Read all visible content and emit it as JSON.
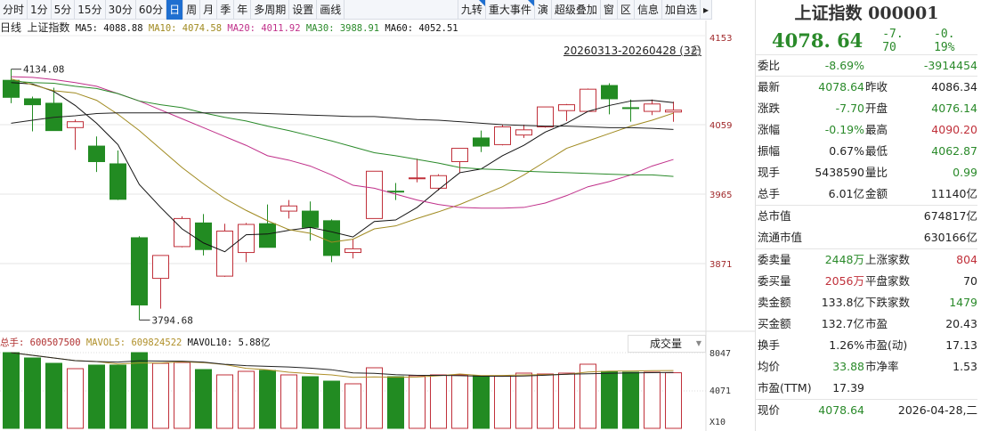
{
  "toolbar": {
    "periods": [
      "分时",
      "1分",
      "5分",
      "15分",
      "30分",
      "60分",
      "日",
      "周",
      "月",
      "季",
      "年",
      "多周期",
      "设置",
      "画线"
    ],
    "selected": "日",
    "tools": [
      "九转",
      "重大事件",
      "演",
      "超级叠加",
      "窗",
      "区",
      "信息",
      "加自选"
    ]
  },
  "legend": {
    "period": "日线",
    "name": "上证指数",
    "ma5": "MA5: 4088.88",
    "ma10": "MA10: 4074.58",
    "ma20": "MA20: 4011.92",
    "ma30": "MA30: 3988.91",
    "ma60": "MA60: 4052.51"
  },
  "range_label": "20260313-20260428 (32)",
  "volume_legend": {
    "total": "总手: 600507500",
    "mavol5": "MAVOL5: 609824522",
    "mavol10": "MAVOL10: 5.88亿",
    "dropdown": "成交量"
  },
  "colors": {
    "up": "#c0303a",
    "down": "#228b22",
    "ma5": "#111111",
    "ma10": "#a08a20",
    "ma20": "#c0308a",
    "ma30": "#2a8a2a",
    "ma60": "#222222",
    "axis": "#a0282a"
  },
  "chart_data": {
    "type": "candlestick",
    "count": 32,
    "yticks": [
      4153,
      4059,
      3965,
      3871
    ],
    "high_marker": "4134.08",
    "low_marker": "3794.68",
    "ohlc": [
      [
        4119,
        4134.08,
        4088,
        4096
      ],
      [
        4094,
        4097,
        4050,
        4086
      ],
      [
        4088,
        4109,
        4051,
        4051
      ],
      [
        4055,
        4066,
        4025,
        4063
      ],
      [
        4030,
        4043,
        3995,
        4009
      ],
      [
        4006,
        4024,
        3957,
        3958
      ],
      [
        3906,
        3908,
        3794.68,
        3815
      ],
      [
        3851,
        3882,
        3810,
        3882
      ],
      [
        3894,
        3935,
        3893,
        3932
      ],
      [
        3926,
        3938,
        3882,
        3890
      ],
      [
        3854,
        3925,
        3853,
        3915
      ],
      [
        3886,
        3926,
        3873,
        3924
      ],
      [
        3925,
        3951,
        3893,
        3893
      ],
      [
        3942,
        3957,
        3932,
        3949
      ],
      [
        3942,
        3955,
        3902,
        3920
      ],
      [
        3929,
        3931,
        3873,
        3882
      ],
      [
        3886,
        3904,
        3878,
        3891
      ],
      [
        3932,
        3996,
        3932,
        3996
      ],
      [
        3969,
        3980,
        3957,
        3968
      ],
      [
        3986,
        4013,
        3981,
        3987
      ],
      [
        3973,
        3992,
        3970,
        3990
      ],
      [
        4009,
        4027,
        3994,
        4027
      ],
      [
        4041,
        4051,
        4022,
        4030
      ],
      [
        4032,
        4059,
        4031,
        4056
      ],
      [
        4045,
        4059,
        4041,
        4052
      ],
      [
        4056,
        4083,
        4055,
        4083
      ],
      [
        4078,
        4087,
        4064,
        4086
      ],
      [
        4077,
        4108,
        4077,
        4107
      ],
      [
        4112,
        4115,
        4073,
        4094
      ],
      [
        4082,
        4093,
        4063,
        4081
      ],
      [
        4077,
        4093,
        4072,
        4087
      ],
      [
        4076.14,
        4090.2,
        4062.87,
        4078.64
      ]
    ],
    "ma": {
      "MA5": [
        4116,
        4114,
        4104,
        4085,
        4061,
        4032,
        3978,
        3947,
        3918,
        3899,
        3887,
        3910,
        3911,
        3916,
        3920,
        3914,
        3907,
        3928,
        3930,
        3947,
        3971,
        3994,
        3999,
        4017,
        4031,
        4049,
        4061,
        4077,
        4085,
        4091,
        4092,
        4088.88
      ],
      "MA10": [
        4121,
        4113,
        4105,
        4102,
        4092,
        4073,
        4051,
        4026,
        4001,
        3979,
        3959,
        3943,
        3929,
        3917,
        3912,
        3900,
        3904,
        3918,
        3922,
        3932,
        3941,
        3951,
        3963,
        3975,
        3991,
        4009,
        4027,
        4037,
        4047,
        4057,
        4065,
        4074.58
      ],
      "MA20": [
        4124,
        4123,
        4120,
        4116,
        4111,
        4101,
        4091,
        4079,
        4067,
        4055,
        4043,
        4031,
        4017,
        4011,
        4003,
        3991,
        3977,
        3973,
        3965,
        3957,
        3951,
        3947,
        3946,
        3946,
        3947,
        3953,
        3963,
        3975,
        3982,
        3991,
        4003,
        4011.92
      ],
      "MA30": [
        4118,
        4116,
        4115,
        4111,
        4108,
        4101,
        4091,
        4086,
        4082,
        4075,
        4069,
        4064,
        4057,
        4051,
        4044,
        4037,
        4029,
        4021,
        4017,
        4012,
        4007,
        4001,
        3999,
        3998,
        3996,
        3995,
        3994,
        3993,
        3992,
        3991,
        3991,
        3988.91
      ],
      "MA60": [
        4061,
        4065,
        4069,
        4071,
        4074,
        4075,
        4075,
        4075,
        4075,
        4075,
        4075,
        4075,
        4074,
        4073,
        4072,
        4071,
        4070,
        4070,
        4068,
        4066,
        4065,
        4063,
        4061,
        4059,
        4058,
        4057,
        4057,
        4056,
        4055,
        4055,
        4054,
        4052.51
      ]
    },
    "volume": {
      "yticks": [
        "8047",
        "4071",
        "X10"
      ],
      "values": [
        8143,
        7575,
        7007,
        6438,
        6817,
        6817,
        8143,
        7007,
        7101,
        6344,
        5776,
        6154,
        6249,
        5776,
        5586,
        5112,
        4829,
        6533,
        5586,
        5681,
        5776,
        5776,
        5681,
        5681,
        5965,
        5870,
        5965,
        6912,
        6154,
        6060,
        6060,
        6005
      ]
    }
  },
  "panel": {
    "title": "上证指数 000001",
    "price": "4078. 64",
    "change": "-7. 70",
    "pct": "-0. 19%",
    "weibi": {
      "k": "委比",
      "v1": "-8.69%",
      "v2": "-3914454"
    },
    "rows": [
      {
        "k": "最新",
        "v1": "4078.64",
        "c1": "g",
        "k2": "昨收",
        "v2": "4086.34",
        "c2": ""
      },
      {
        "k": "涨跌",
        "v1": "-7.70",
        "c1": "g",
        "k2": "开盘",
        "v2": "4076.14",
        "c2": "g"
      },
      {
        "k": "涨幅",
        "v1": "-0.19%",
        "c1": "g",
        "k2": "最高",
        "v2": "4090.20",
        "c2": "r"
      },
      {
        "k": "振幅",
        "v1": "0.67%",
        "c1": "",
        "k2": "最低",
        "v2": "4062.87",
        "c2": "g"
      },
      {
        "k": "现手",
        "v1": "5438590",
        "c1": "",
        "k2": "量比",
        "v2": "0.99",
        "c2": "g"
      },
      {
        "k": "总手",
        "v1": "6.01亿",
        "c1": "",
        "k2": "金额",
        "v2": "11140亿",
        "c2": ""
      }
    ],
    "cap": [
      {
        "k": "总市值",
        "v": "674817亿"
      },
      {
        "k": "流通市值",
        "v": "630166亿"
      }
    ],
    "rows2": [
      {
        "k": "委卖量",
        "v1": "2448万",
        "c1": "g",
        "k2": "上涨家数",
        "v2": "804",
        "c2": "r"
      },
      {
        "k": "委买量",
        "v1": "2056万",
        "c1": "r",
        "k2": "平盘家数",
        "v2": "70",
        "c2": ""
      },
      {
        "k": "卖金额",
        "v1": "133.8亿",
        "c1": "",
        "k2": "下跌家数",
        "v2": "1479",
        "c2": "g"
      },
      {
        "k": "买金额",
        "v1": "132.7亿",
        "c1": "",
        "k2": "市盈",
        "v2": "20.43",
        "c2": ""
      },
      {
        "k": "换手",
        "v1": "1.26%",
        "c1": "",
        "k2": "市盈(动)",
        "v2": "17.13",
        "c2": ""
      },
      {
        "k": "均价",
        "v1": "33.88",
        "c1": "g",
        "k2": "市净率",
        "v2": "1.53",
        "c2": ""
      },
      {
        "k": "市盈(TTM)",
        "v1": "17.39",
        "c1": "",
        "k2": "",
        "v2": "",
        "c2": ""
      }
    ],
    "last": {
      "k": "现价",
      "v1": "4078.64",
      "v2": "2026-04-28,二"
    }
  }
}
